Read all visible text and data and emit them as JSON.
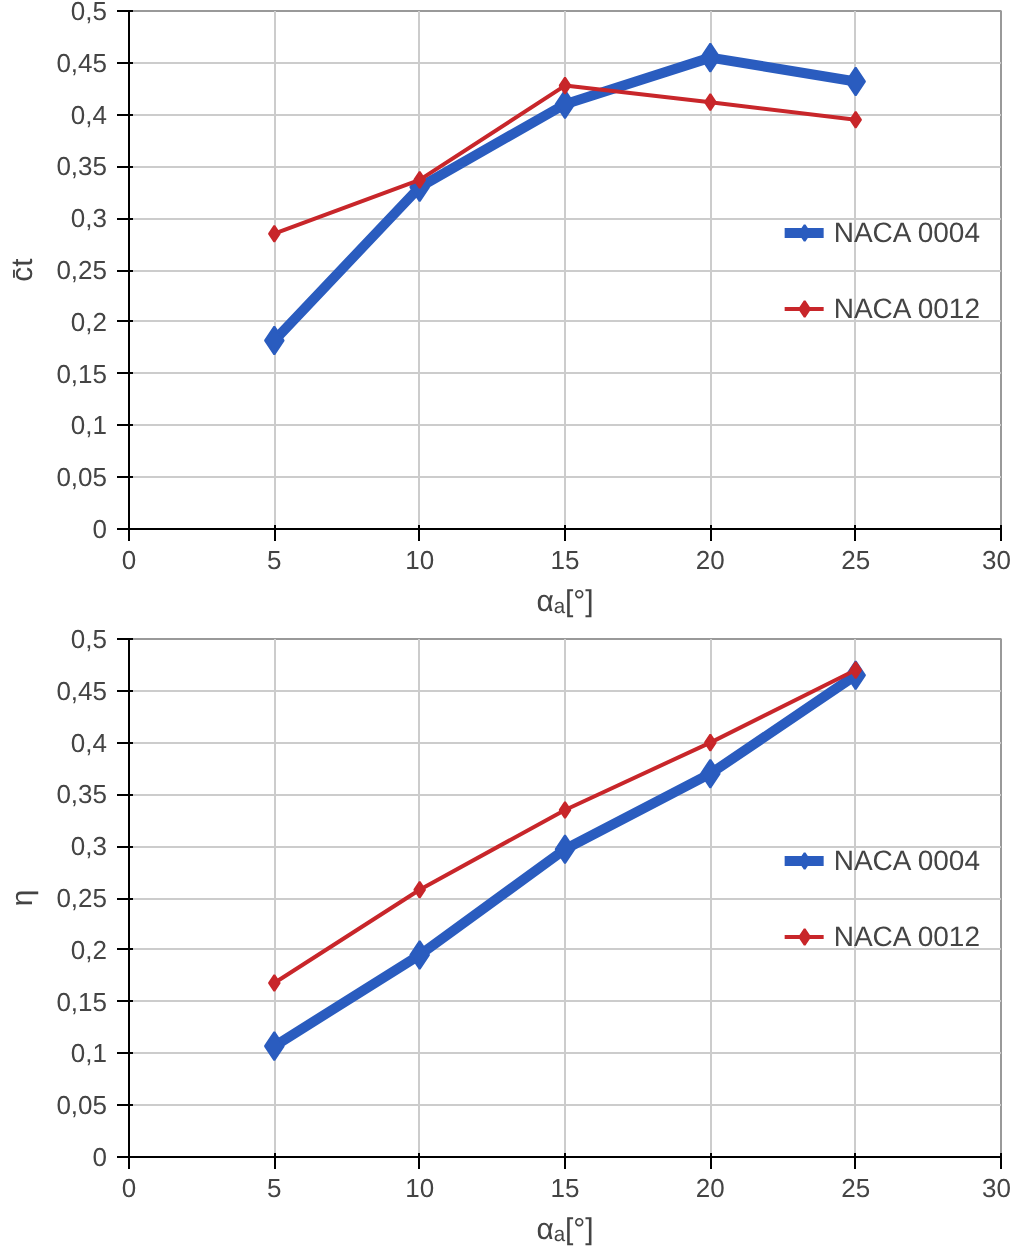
{
  "chart_data": [
    {
      "type": "line",
      "xlabel": "αₐ[°]",
      "ylabel": "c̄t",
      "x": [
        5,
        10,
        15,
        20,
        25
      ],
      "xlim": [
        0,
        30
      ],
      "xticks": [
        0,
        5,
        10,
        15,
        20,
        25,
        30
      ],
      "ylim": [
        0,
        0.5
      ],
      "yticks": [
        {
          "value": 0,
          "label": "0"
        },
        {
          "value": 0.05,
          "label": "0,05"
        },
        {
          "value": 0.1,
          "label": "0,1"
        },
        {
          "value": 0.15,
          "label": "0,15"
        },
        {
          "value": 0.2,
          "label": "0,2"
        },
        {
          "value": 0.25,
          "label": "0,25"
        },
        {
          "value": 0.3,
          "label": "0,3"
        },
        {
          "value": 0.35,
          "label": "0,35"
        },
        {
          "value": 0.4,
          "label": "0,4"
        },
        {
          "value": 0.45,
          "label": "0,45"
        },
        {
          "value": 0.5,
          "label": "0,5"
        }
      ],
      "grid": true,
      "legend": "right",
      "marker": "diamond",
      "line_style": "solid",
      "series": [
        {
          "name": "NACA 0004",
          "color": "#2a5cbf",
          "values": [
            0.182,
            0.33,
            0.41,
            0.455,
            0.432
          ]
        },
        {
          "name": "NACA 0012",
          "color": "#c8262a",
          "values": [
            0.285,
            0.337,
            0.428,
            0.412,
            0.395
          ]
        }
      ]
    },
    {
      "type": "line",
      "xlabel": "αₐ[°]",
      "ylabel": "η",
      "x": [
        5,
        10,
        15,
        20,
        25
      ],
      "xlim": [
        0,
        30
      ],
      "xticks": [
        0,
        5,
        10,
        15,
        20,
        25,
        30
      ],
      "ylim": [
        0,
        0.5
      ],
      "yticks": [
        {
          "value": 0,
          "label": "0"
        },
        {
          "value": 0.05,
          "label": "0,05"
        },
        {
          "value": 0.1,
          "label": "0,1"
        },
        {
          "value": 0.15,
          "label": "0,15"
        },
        {
          "value": 0.2,
          "label": "0,2"
        },
        {
          "value": 0.25,
          "label": "0,25"
        },
        {
          "value": 0.3,
          "label": "0,3"
        },
        {
          "value": 0.35,
          "label": "0,35"
        },
        {
          "value": 0.4,
          "label": "0,4"
        },
        {
          "value": 0.45,
          "label": "0,45"
        },
        {
          "value": 0.5,
          "label": "0,5"
        }
      ],
      "grid": true,
      "legend": "right",
      "marker": "diamond",
      "line_style": "solid",
      "series": [
        {
          "name": "NACA 0004",
          "color": "#2a5cbf",
          "values": [
            0.107,
            0.195,
            0.297,
            0.37,
            0.465
          ]
        },
        {
          "name": "NACA 0012",
          "color": "#c8262a",
          "values": [
            0.168,
            0.258,
            0.335,
            0.4,
            0.47
          ]
        }
      ]
    }
  ]
}
